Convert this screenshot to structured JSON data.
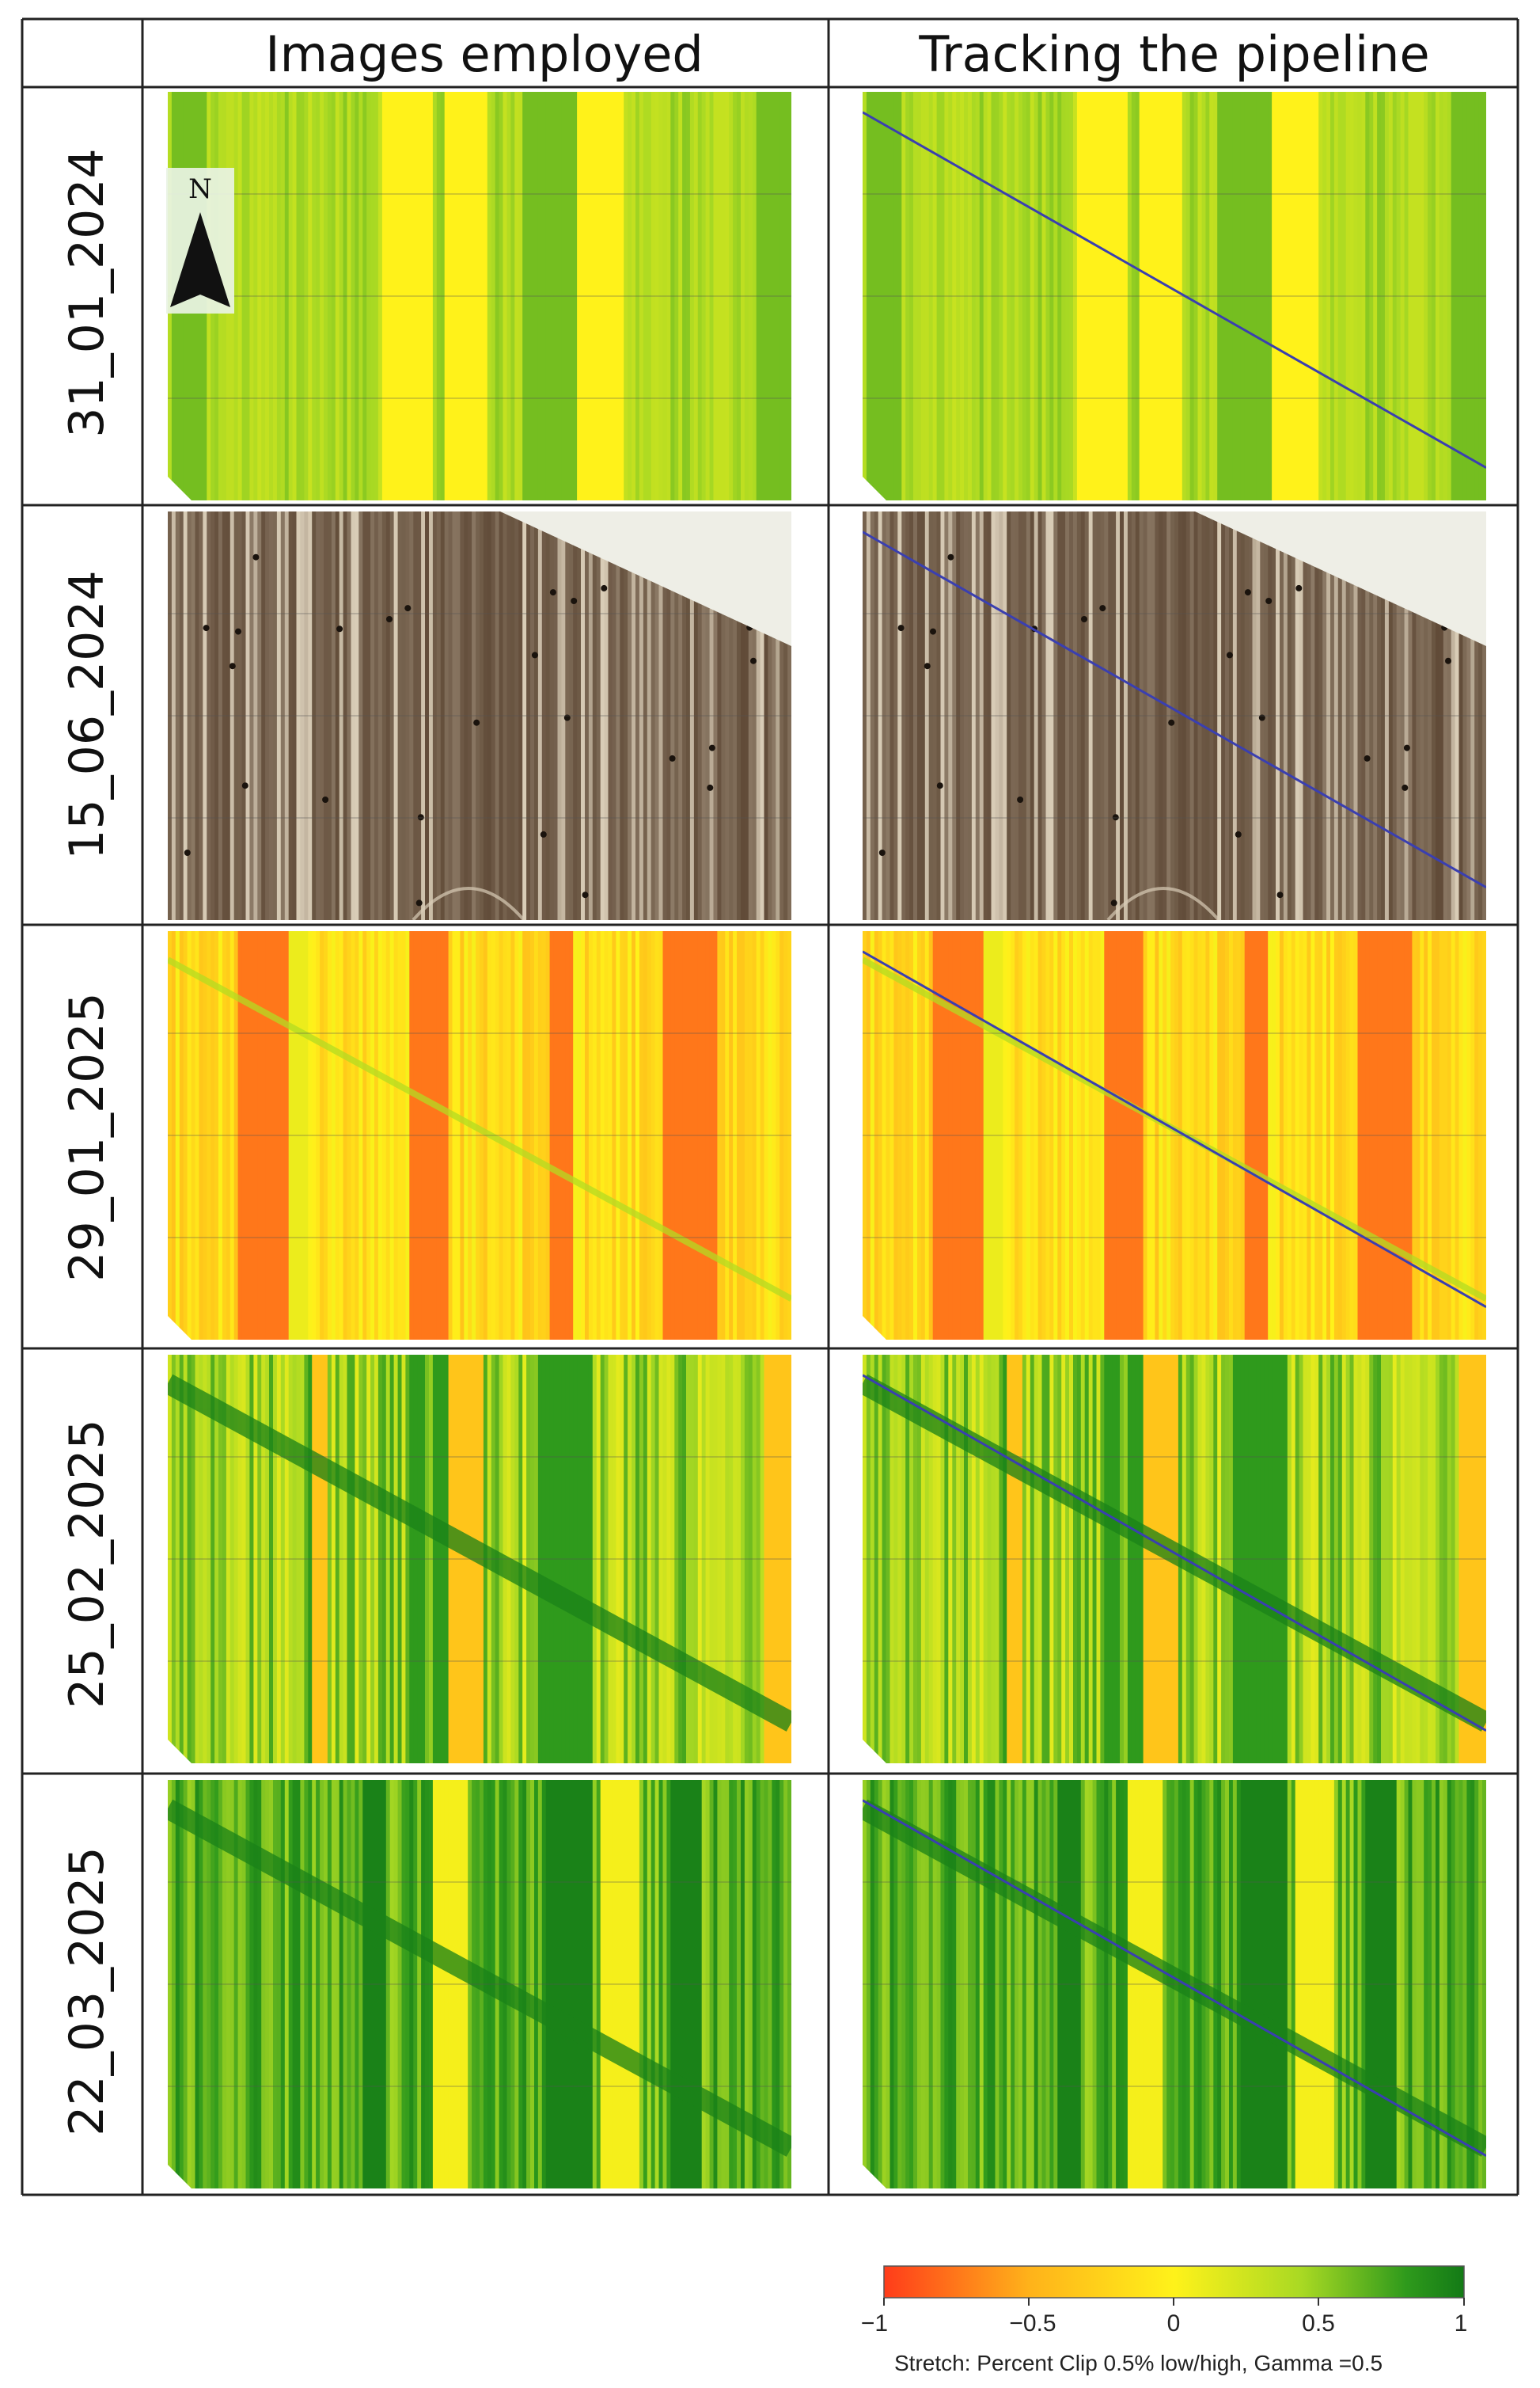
{
  "table": {
    "headers": [
      "Images employed",
      "Tracking the pipeline"
    ],
    "rows": [
      {
        "date": "31_01_2024",
        "theme": "green",
        "stretch": [
          0.15,
          0.55
        ]
      },
      {
        "date": "15_06_2024",
        "theme": "soil",
        "stretch": [
          0.0,
          1.0
        ]
      },
      {
        "date": "29_01_2025",
        "theme": "orange",
        "stretch": [
          -0.6,
          0.05
        ]
      },
      {
        "date": "25_02_2025",
        "theme": "mixed",
        "stretch": [
          -0.2,
          0.75
        ]
      },
      {
        "date": "22_03_2025",
        "theme": "dark",
        "stretch": [
          0.2,
          0.9
        ]
      }
    ]
  },
  "north_arrow": {
    "label": "N"
  },
  "legend": {
    "ticks": [
      "−1",
      "−0.5",
      "0",
      "0.5",
      "1"
    ],
    "caption": "Stretch:  Percent  Clip 0.5% low/high,  Gamma =0.5",
    "colors": [
      "#ff3c1a",
      "#ffb21a",
      "#fff21a",
      "#a9d923",
      "#2f9a1c",
      "#137a16"
    ]
  },
  "colors": {
    "soil_dark": "#5a4431",
    "soil_light": "#d8ccb6",
    "pipeline_line": "#3a3fb0",
    "grid_border": "#222222"
  }
}
